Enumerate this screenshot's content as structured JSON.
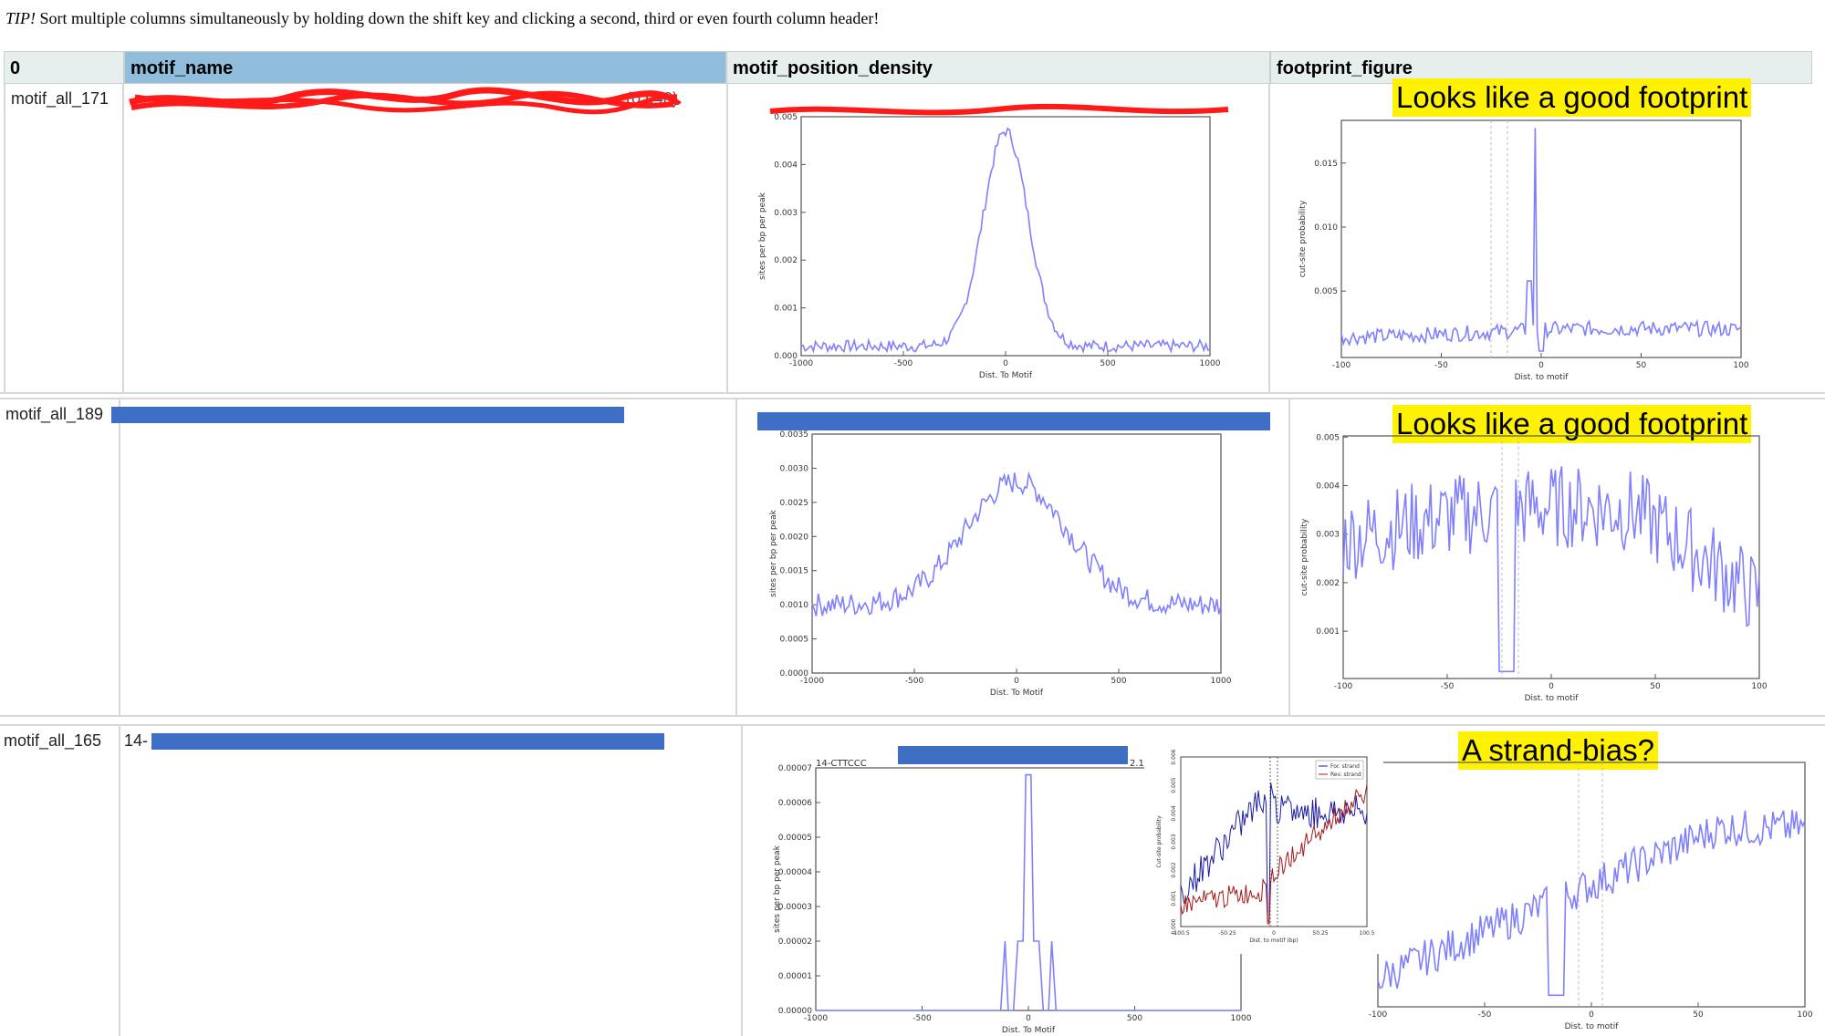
{
  "tip": {
    "prefix": "TIP!",
    "text": "Sort multiple columns simultaneously by holding down the shift key and clicking a second, third or even fourth column header!"
  },
  "headers": [
    "0",
    "motif_name",
    "motif_position_density",
    "footprint_figure"
  ],
  "rows": [
    {
      "id": "motif_all_171",
      "motif_name_visible": "(0.948)",
      "note": "Looks like a good footprint"
    },
    {
      "id": "motif_all_189",
      "note": "Looks like a good footprint"
    },
    {
      "id": "motif_all_165",
      "motif_name_visible": "14-",
      "note": "A strand-bias?"
    }
  ],
  "density_plots": [
    {
      "ylabel": "sites per bp per peak",
      "xlabel": "Dist. To Motif",
      "yticks": [
        "0.000",
        "0.001",
        "0.002",
        "0.003",
        "0.004",
        "0.005"
      ],
      "xticks": [
        "-1000",
        "-500",
        "0",
        "500",
        "1000"
      ]
    },
    {
      "ylabel": "sites per bp per peak",
      "xlabel": "Dist. To Motif",
      "yticks": [
        "0.0000",
        "0.0005",
        "0.0010",
        "0.0015",
        "0.0020",
        "0.0025",
        "0.0030",
        "0.0035"
      ],
      "xticks": [
        "-1000",
        "-500",
        "0",
        "500",
        "1000"
      ]
    },
    {
      "ylabel": "sites per bp per peak",
      "xlabel": "Dist. To Motif",
      "yticks": [
        "0.00000",
        "0.00001",
        "0.00002",
        "0.00003",
        "0.00004",
        "0.00005",
        "0.00006",
        "0.00007"
      ],
      "xticks": [
        "-1000",
        "-500",
        "0",
        "500",
        "1000"
      ],
      "title_prefix": "14-CTTCCC",
      "title_suffix": "2.1"
    }
  ],
  "footprint_plots": [
    {
      "ylabel": "cut-site probability",
      "xlabel": "Dist. to motif",
      "yticks": [
        "0.005",
        "0.010",
        "0.015"
      ],
      "xticks": [
        "-100",
        "-50",
        "0",
        "50",
        "100"
      ]
    },
    {
      "ylabel": "cut-site probability",
      "xlabel": "Dist. to motif",
      "yticks": [
        "0.001",
        "0.002",
        "0.003",
        "0.004",
        "0.005"
      ],
      "xticks": [
        "-100",
        "-50",
        "0",
        "50",
        "100"
      ]
    },
    {
      "ylabel": "",
      "xlabel": "Dist. to motif",
      "yticks": [],
      "xticks": [
        "-100",
        "-50",
        "0",
        "50",
        "100"
      ]
    }
  ],
  "strand_inset": {
    "ylabel": "Cut-site probability",
    "xlabel": "Dist. to motif (bp)",
    "legend": [
      "For. strand",
      "Rev. strand"
    ],
    "xticks": [
      "-100.5",
      "-50.25",
      "0",
      "50.25",
      "100.5"
    ],
    "yticks": [
      "0.000",
      "0.001",
      "0.002",
      "0.003",
      "0.004",
      "0.005",
      "0.006"
    ],
    "colors": {
      "forward": "#1a1aa6",
      "reverse": "#a31818"
    }
  },
  "colors": {
    "line": "#8080ff",
    "redaction": "#3f6fc5",
    "scribble": "#ff1a1a",
    "highlight": "#fff200"
  }
}
